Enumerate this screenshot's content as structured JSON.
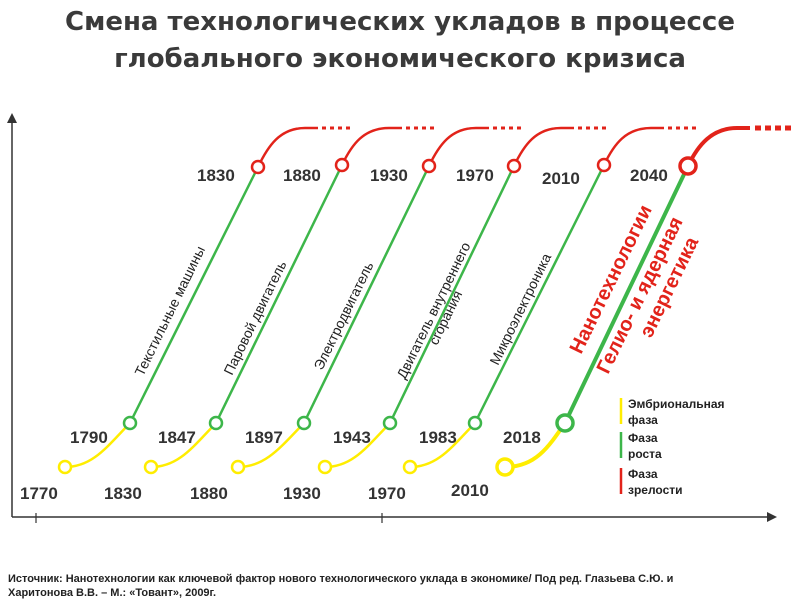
{
  "title": {
    "line1": "Смена технологических укладов в процессе",
    "line2": "глобального экономического кризиса"
  },
  "colors": {
    "embryonic": "#ffed00",
    "growth": "#3db64a",
    "maturity": "#e2231a",
    "axis": "#333333",
    "year_text": "#333333"
  },
  "waves": [
    {
      "label": "Текстильные машины",
      "start_year": "1770",
      "growth_year": "1790",
      "mature_year": "1830",
      "highlight": false
    },
    {
      "label": "Паровой двигатель",
      "start_year": "1830",
      "growth_year": "1847",
      "mature_year": "1880",
      "highlight": false
    },
    {
      "label": "Электродвигатель",
      "start_year": "1880",
      "growth_year": "1897",
      "mature_year": "1930",
      "highlight": false
    },
    {
      "label": "Двигатель внутреннего сгорания",
      "label_line1": "Двигатель внутреннего",
      "label_line2": "сгорания",
      "start_year": "1930",
      "growth_year": "1943",
      "mature_year": "1970",
      "highlight": false
    },
    {
      "label": "Микроэлектроника",
      "start_year": "1970",
      "growth_year": "1983",
      "mature_year": "2010",
      "highlight": false
    },
    {
      "label": "Нанотехнологии Гелио- и ядерная энергетика",
      "label_line1": "Нанотехнологии",
      "label_line2": "Гелио- и ядерная",
      "label_line3": "энергетика",
      "start_year": "2010",
      "growth_year": "2018",
      "mature_year": "2040",
      "highlight": true
    }
  ],
  "legend": [
    {
      "phase": "embryonic",
      "line1": "Эмбриональная",
      "line2": "фаза"
    },
    {
      "phase": "growth",
      "line1": "Фаза",
      "line2": "роста"
    },
    {
      "phase": "maturity",
      "line1": "Фаза",
      "line2": "зрелости"
    }
  ],
  "source": {
    "line1": "Источник: Нанотехнологии как ключевой фактор нового технологического уклада в экономике/ Под ред. Глазьева С.Ю. и",
    "line2": "Харитонова В.В. – М.: «Товант», 2009г."
  }
}
